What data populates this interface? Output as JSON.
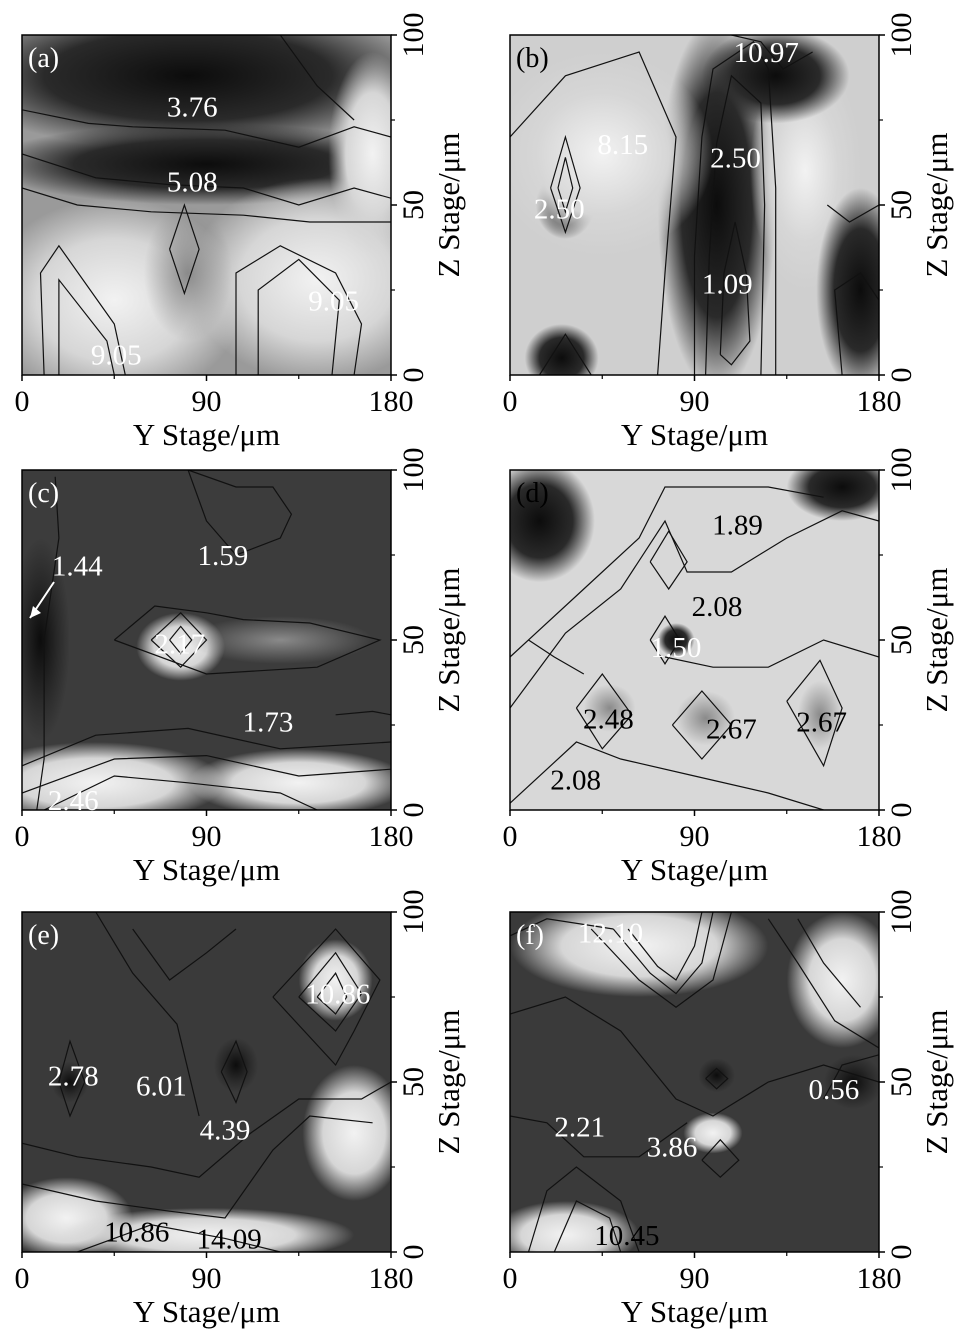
{
  "chart_data": [
    {
      "type": "heatmap",
      "panel": "(a)",
      "xlabel": "Y Stage/μm",
      "ylabel": "Z Stage/μm",
      "xlim": [
        0,
        180
      ],
      "ylim": [
        0,
        100
      ],
      "xticks": [
        "0",
        "90",
        "180"
      ],
      "yticks": [
        "0",
        "50",
        "100"
      ],
      "contour_labels": [
        {
          "text": "3.76",
          "y_stage": 83,
          "z_stage": 78,
          "tone": "light"
        },
        {
          "text": "5.08",
          "y_stage": 83,
          "z_stage": 56,
          "tone": "light"
        },
        {
          "text": "9.05",
          "y_stage": 152,
          "z_stage": 21,
          "tone": "light"
        },
        {
          "text": "9.05",
          "y_stage": 46,
          "z_stage": 5,
          "tone": "light"
        }
      ]
    },
    {
      "type": "heatmap",
      "panel": "(b)",
      "xlabel": "Y Stage/μm",
      "ylabel": "Z Stage/μm",
      "xlim": [
        0,
        180
      ],
      "ylim": [
        0,
        100
      ],
      "xticks": [
        "0",
        "90",
        "180"
      ],
      "yticks": [
        "0",
        "50",
        "100"
      ],
      "contour_labels": [
        {
          "text": "10.97",
          "y_stage": 125,
          "z_stage": 94,
          "tone": "light"
        },
        {
          "text": "8.15",
          "y_stage": 55,
          "z_stage": 67,
          "tone": "light"
        },
        {
          "text": "2.50",
          "y_stage": 110,
          "z_stage": 63,
          "tone": "light"
        },
        {
          "text": "2.50",
          "y_stage": 24,
          "z_stage": 48,
          "tone": "light"
        },
        {
          "text": "1.09",
          "y_stage": 106,
          "z_stage": 26,
          "tone": "light"
        }
      ]
    },
    {
      "type": "heatmap",
      "panel": "(c)",
      "xlabel": "Y Stage/μm",
      "ylabel": "Z Stage/μm",
      "xlim": [
        0,
        180
      ],
      "ylim": [
        0,
        100
      ],
      "xticks": [
        "0",
        "90",
        "180"
      ],
      "yticks": [
        "0",
        "50",
        "100"
      ],
      "contour_labels": [
        {
          "text": "1.44",
          "y_stage": 27,
          "z_stage": 71,
          "tone": "light"
        },
        {
          "text": "1.59",
          "y_stage": 98,
          "z_stage": 74,
          "tone": "light"
        },
        {
          "text": "2.17",
          "y_stage": 77,
          "z_stage": 48,
          "tone": "light"
        },
        {
          "text": "1.73",
          "y_stage": 120,
          "z_stage": 25,
          "tone": "light"
        },
        {
          "text": "2.46",
          "y_stage": 25,
          "z_stage": 2,
          "tone": "light"
        }
      ]
    },
    {
      "type": "heatmap",
      "panel": "(d)",
      "xlabel": "Y Stage/μm",
      "ylabel": "Z Stage/μm",
      "xlim": [
        0,
        180
      ],
      "ylim": [
        0,
        100
      ],
      "xticks": [
        "0",
        "90",
        "180"
      ],
      "yticks": [
        "0",
        "50",
        "100"
      ],
      "contour_labels": [
        {
          "text": "1.89",
          "y_stage": 111,
          "z_stage": 83,
          "tone": "dark"
        },
        {
          "text": "2.08",
          "y_stage": 101,
          "z_stage": 59,
          "tone": "dark"
        },
        {
          "text": "1.50",
          "y_stage": 81,
          "z_stage": 47,
          "tone": "light"
        },
        {
          "text": "2.48",
          "y_stage": 48,
          "z_stage": 26,
          "tone": "dark"
        },
        {
          "text": "2.67",
          "y_stage": 108,
          "z_stage": 23,
          "tone": "dark"
        },
        {
          "text": "2.67",
          "y_stage": 152,
          "z_stage": 25,
          "tone": "dark"
        },
        {
          "text": "2.08",
          "y_stage": 32,
          "z_stage": 8,
          "tone": "dark"
        }
      ]
    },
    {
      "type": "heatmap",
      "panel": "(e)",
      "xlabel": "Y Stage/μm",
      "ylabel": "Z Stage/μm",
      "xlim": [
        0,
        180
      ],
      "ylim": [
        0,
        100
      ],
      "xticks": [
        "0",
        "90",
        "180"
      ],
      "yticks": [
        "0",
        "50",
        "100"
      ],
      "contour_labels": [
        {
          "text": "10.86",
          "y_stage": 154,
          "z_stage": 75,
          "tone": "light"
        },
        {
          "text": "2.78",
          "y_stage": 25,
          "z_stage": 51,
          "tone": "light"
        },
        {
          "text": "6.01",
          "y_stage": 68,
          "z_stage": 48,
          "tone": "light"
        },
        {
          "text": "4.39",
          "y_stage": 99,
          "z_stage": 35,
          "tone": "light"
        },
        {
          "text": "10.86",
          "y_stage": 56,
          "z_stage": 5,
          "tone": "dark"
        },
        {
          "text": "14.09",
          "y_stage": 101,
          "z_stage": 3,
          "tone": "dark"
        }
      ]
    },
    {
      "type": "heatmap",
      "panel": "(f)",
      "xlabel": "Y Stage/μm",
      "ylabel": "Z Stage/μm",
      "xlim": [
        0,
        180
      ],
      "ylim": [
        0,
        100
      ],
      "xticks": [
        "0",
        "90",
        "180"
      ],
      "yticks": [
        "0",
        "50",
        "100"
      ],
      "contour_labels": [
        {
          "text": "12.10",
          "y_stage": 49,
          "z_stage": 93,
          "tone": "light"
        },
        {
          "text": "0.56",
          "y_stage": 158,
          "z_stage": 47,
          "tone": "light"
        },
        {
          "text": "2.21",
          "y_stage": 34,
          "z_stage": 36,
          "tone": "light"
        },
        {
          "text": "3.86",
          "y_stage": 79,
          "z_stage": 30,
          "tone": "light"
        },
        {
          "text": "10.45",
          "y_stage": 57,
          "z_stage": 4,
          "tone": "dark"
        }
      ]
    }
  ]
}
